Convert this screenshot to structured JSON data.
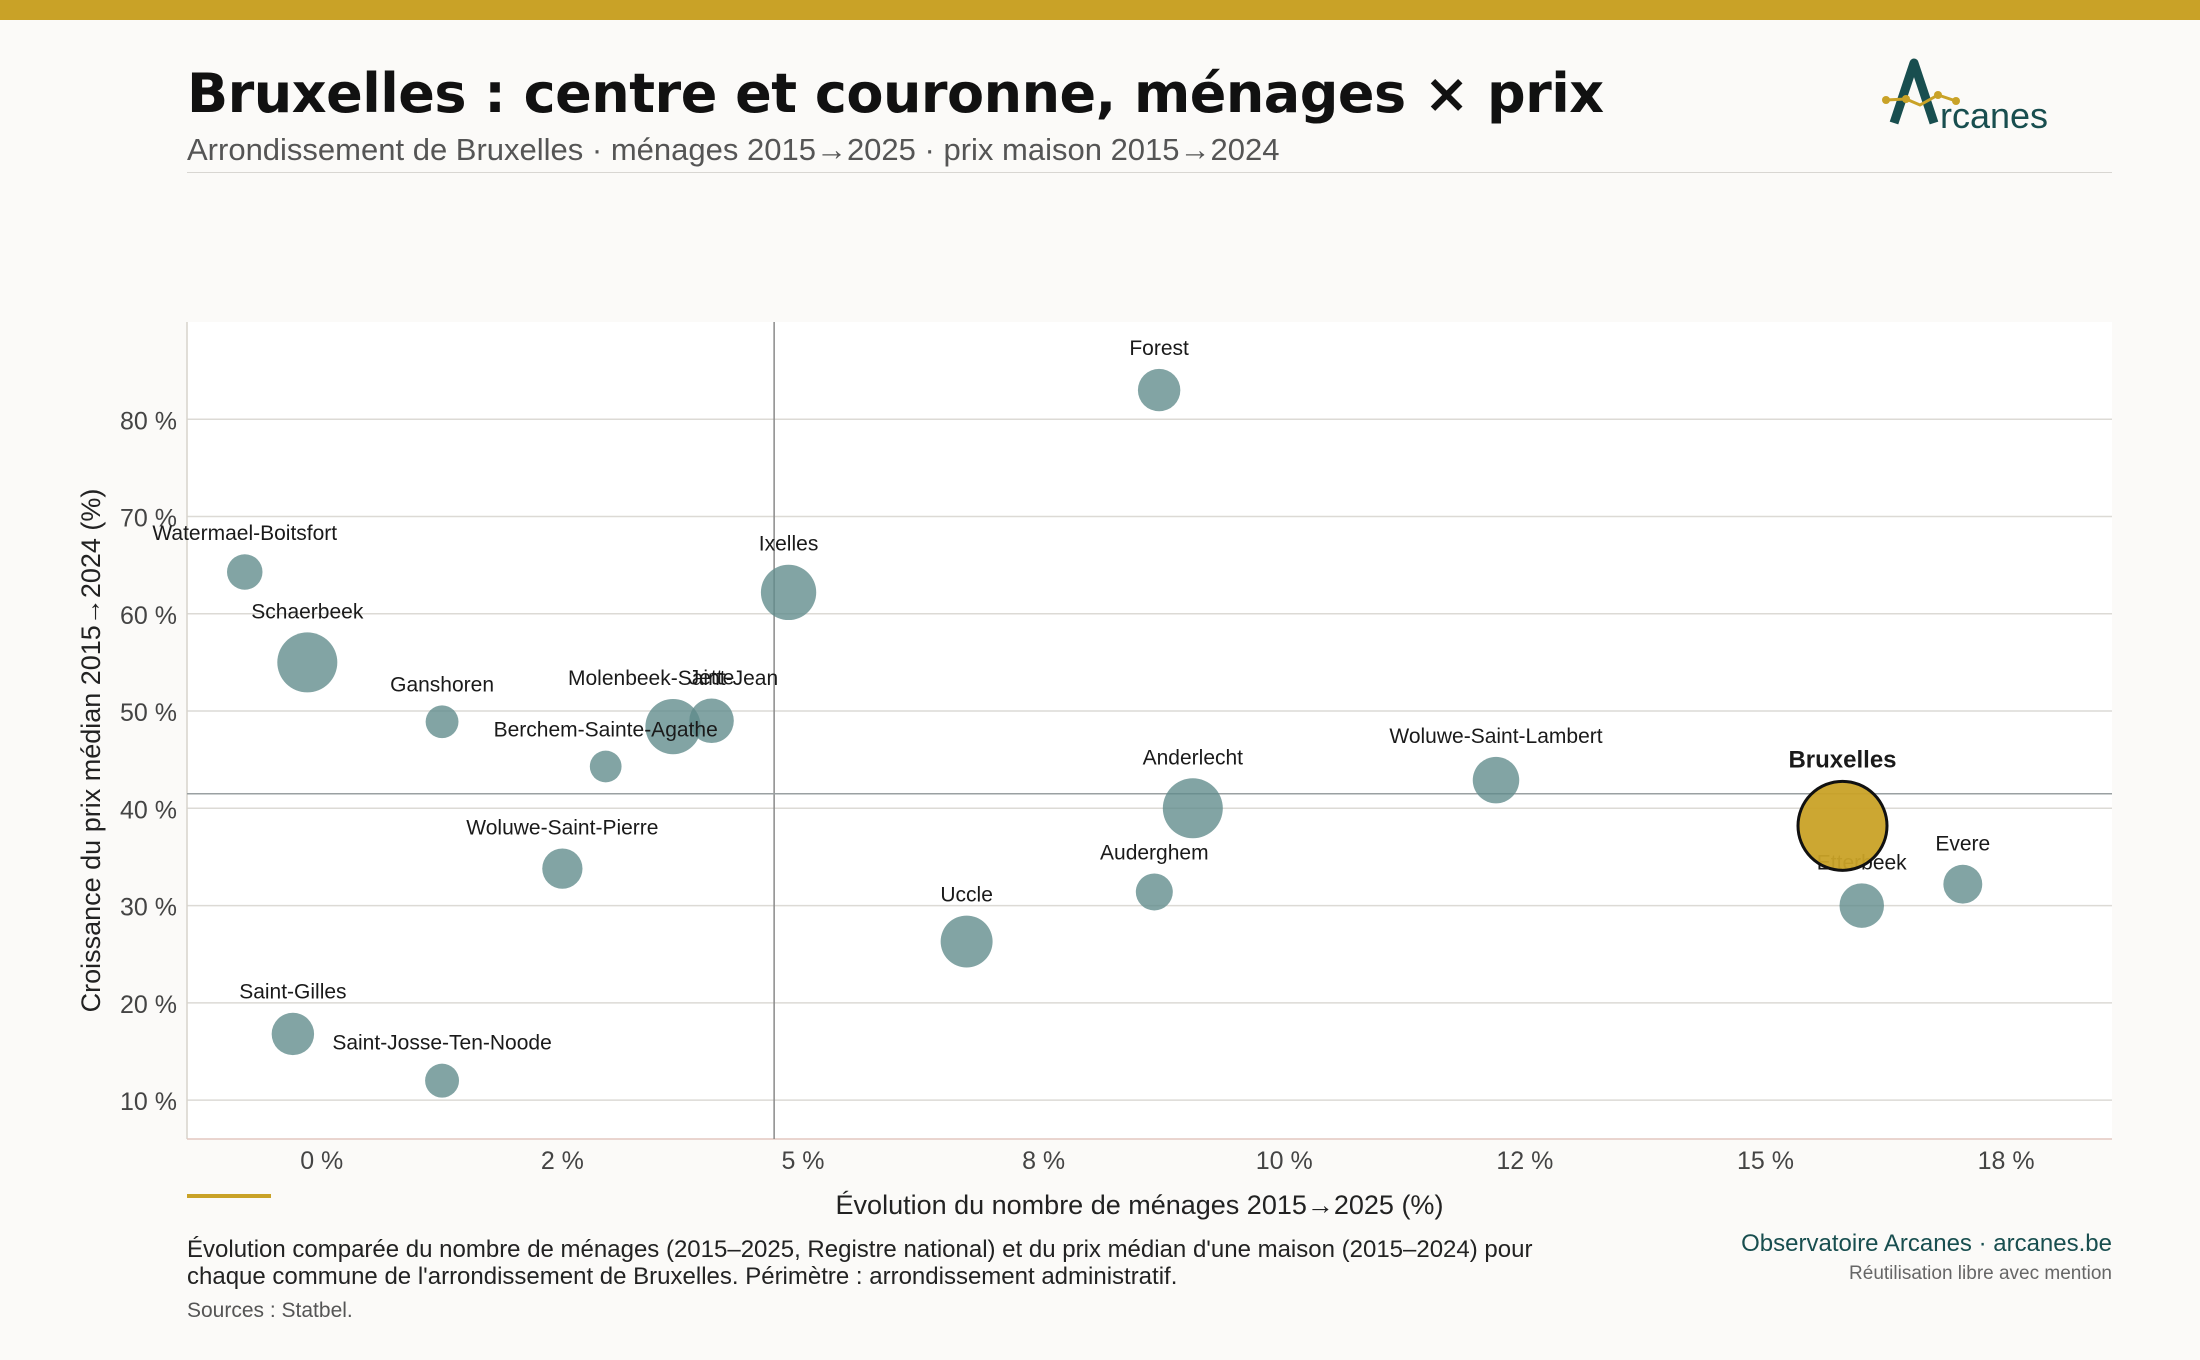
{
  "header": {
    "title": "Bruxelles : centre et couronne, ménages × prix",
    "subtitle": "Arrondissement de Bruxelles · ménages 2015→2025 · prix maison 2015→2024",
    "logo_text": "rcanes"
  },
  "colors": {
    "accent": "#c9a227",
    "bubble": "#5f8a8b",
    "highlight": "#c9a227",
    "brand": "#184e4f"
  },
  "chart_data": {
    "type": "scatter",
    "title": "Bruxelles : centre et couronne, ménages × prix",
    "xlabel": "Évolution du nombre de ménages 2015→2025 (%)",
    "ylabel": "Croissance du prix médian 2015→2024 (%)",
    "xlim": [
      -1.4,
      18.6
    ],
    "ylim": [
      6,
      90
    ],
    "x_ticks": [
      0,
      2.5,
      5,
      7.5,
      10,
      12.5,
      15,
      17.5
    ],
    "x_tick_labels": [
      "0 %",
      "2 %",
      "5 %",
      "8 %",
      "10 %",
      "12 %",
      "15 %",
      "18 %"
    ],
    "y_ticks": [
      10,
      20,
      30,
      40,
      50,
      60,
      70,
      80
    ],
    "y_tick_labels": [
      "10 %",
      "20 %",
      "30 %",
      "40 %",
      "50 %",
      "60 %",
      "70 %",
      "80 %"
    ],
    "grid": true,
    "reference_lines": {
      "x": 4.7,
      "y": 41.5
    },
    "points": [
      {
        "name": "Forest",
        "x": 8.7,
        "y": 83,
        "size": 0.5
      },
      {
        "name": "Watermael-Boitsfort",
        "x": -0.8,
        "y": 64.3,
        "size": 0.35
      },
      {
        "name": "Ixelles",
        "x": 4.85,
        "y": 62.2,
        "size": 0.85
      },
      {
        "name": "Schaerbeek",
        "x": -0.15,
        "y": 55,
        "size": 1.0
      },
      {
        "name": "Ganshoren",
        "x": 1.25,
        "y": 48.9,
        "size": 0.3
      },
      {
        "name": "Molenbeek-Saint-Jean",
        "x": 3.65,
        "y": 48.4,
        "size": 0.85
      },
      {
        "name": "Jette",
        "x": 4.05,
        "y": 49,
        "size": 0.55
      },
      {
        "name": "Berchem-Sainte-Agathe",
        "x": 2.95,
        "y": 44.3,
        "size": 0.28
      },
      {
        "name": "Anderlecht",
        "x": 9.05,
        "y": 40,
        "size": 1.0
      },
      {
        "name": "Woluwe-Saint-Lambert",
        "x": 12.2,
        "y": 42.9,
        "size": 0.6
      },
      {
        "name": "Woluwe-Saint-Pierre",
        "x": 2.5,
        "y": 33.8,
        "size": 0.45
      },
      {
        "name": "Auderghem",
        "x": 8.65,
        "y": 31.4,
        "size": 0.38
      },
      {
        "name": "Uccle",
        "x": 6.7,
        "y": 26.3,
        "size": 0.75
      },
      {
        "name": "Etterbeek",
        "x": 16.0,
        "y": 30,
        "size": 0.55
      },
      {
        "name": "Evere",
        "x": 17.05,
        "y": 32.2,
        "size": 0.42
      },
      {
        "name": "Saint-Gilles",
        "x": -0.3,
        "y": 16.8,
        "size": 0.5
      },
      {
        "name": "Saint-Josse-Ten-Noode",
        "x": 1.25,
        "y": 12,
        "size": 0.32
      },
      {
        "name": "Bruxelles",
        "x": 15.8,
        "y": 38.2,
        "size": 2.2,
        "highlight": true
      }
    ]
  },
  "footer": {
    "caption": "Évolution comparée du nombre de ménages (2015–2025, Registre national) et du prix médian d'une maison (2015–2024) pour chaque commune de l'arrondissement de Bruxelles. Périmètre : arrondissement administratif.",
    "sources": "Sources : Statbel.",
    "brand": "Observatoire Arcanes · arcanes.be",
    "reuse": "Réutilisation libre avec mention"
  }
}
